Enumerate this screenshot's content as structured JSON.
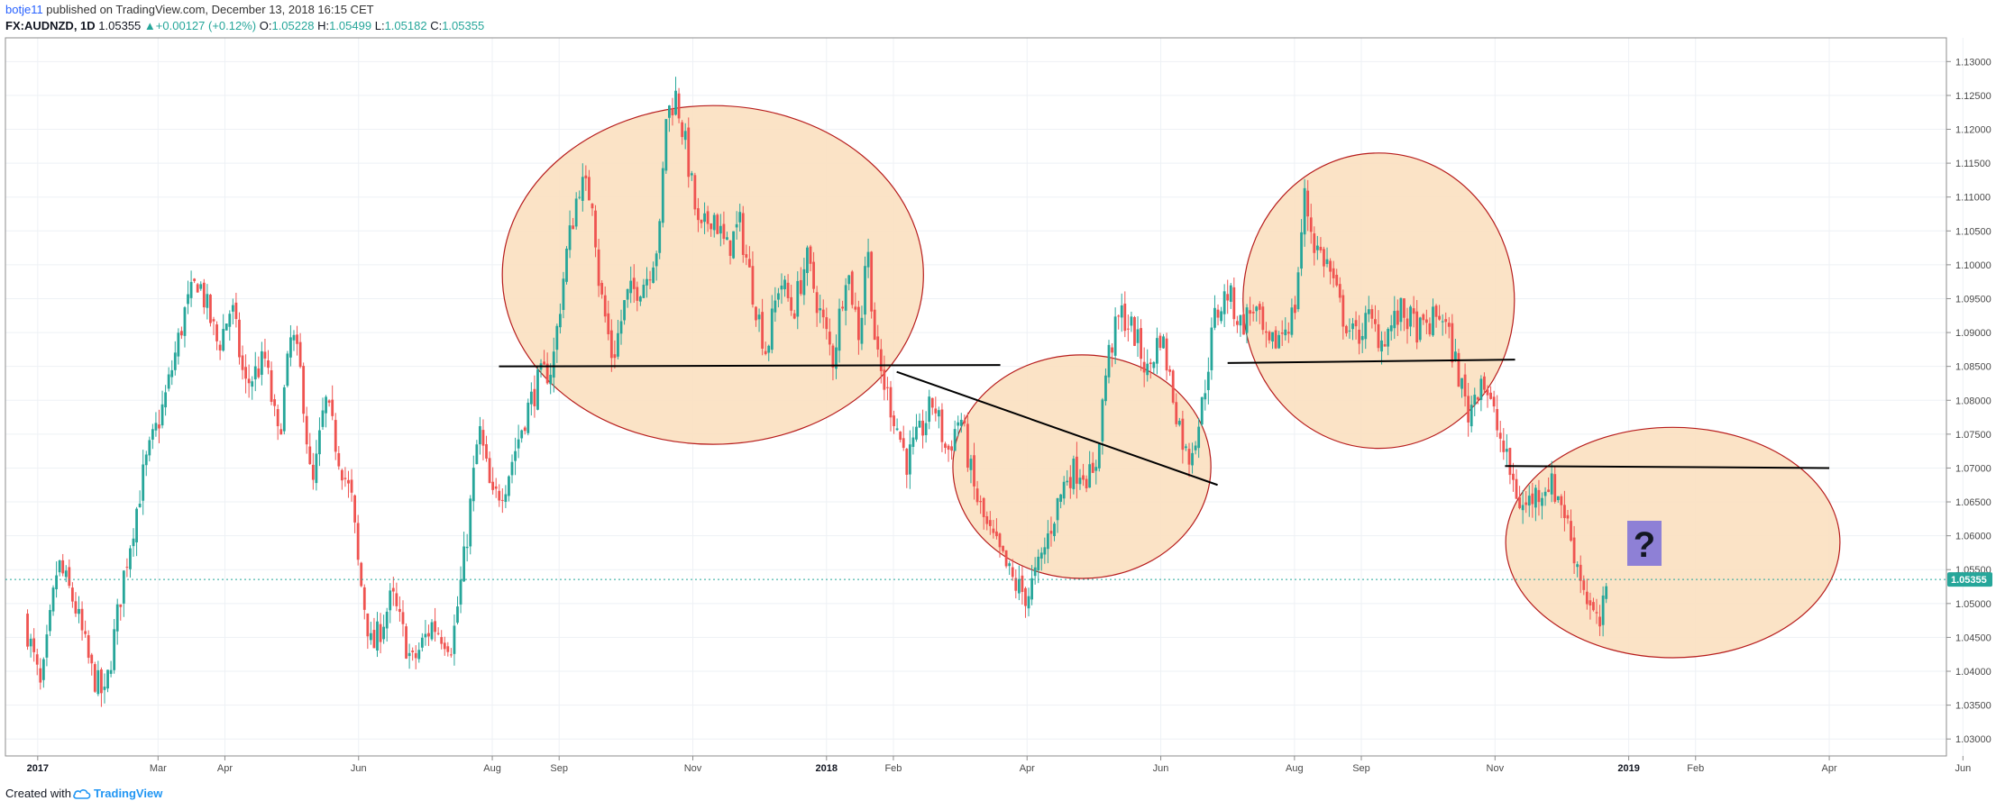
{
  "header": {
    "author": "botje11",
    "published_text": " published on TradingView.com, December 13, 2018 16:15 CET",
    "symbol": "FX:AUDNZD, 1D",
    "last": "1.05355",
    "change": "+0.00127 (+0.12%)",
    "o_label": "O:",
    "o_value": "1.05228",
    "h_label": "H:",
    "h_value": "1.05499",
    "l_label": "L:",
    "l_value": "1.05182",
    "c_label": "C:",
    "c_value": "1.05355"
  },
  "footer": {
    "created_with": "Created with",
    "brand": "TradingView"
  },
  "colors": {
    "up": "#26a69a",
    "down": "#ef5350",
    "ellipse_fill": "#fbe1c1",
    "ellipse_stroke": "#b71c1c",
    "price_tag": "#26a69a",
    "question_box": "#8e80d6"
  },
  "annotation": {
    "question": "?"
  },
  "chart_data": {
    "type": "candlestick",
    "symbol": "FX:AUDNZD",
    "interval": "1D",
    "ylim": [
      1.0275,
      1.1335
    ],
    "y_ticks": [
      "1.13000",
      "1.12500",
      "1.12000",
      "1.11500",
      "1.11000",
      "1.10500",
      "1.10000",
      "1.09500",
      "1.09000",
      "1.08500",
      "1.08000",
      "1.07500",
      "1.07000",
      "1.06500",
      "1.06000",
      "1.05500",
      "1.05000",
      "1.04500",
      "1.04000",
      "1.03500",
      "1.03000"
    ],
    "x_ticks": [
      {
        "label": "2017",
        "t": 0.2,
        "year": true
      },
      {
        "label": "Mar",
        "t": 2.0
      },
      {
        "label": "Apr",
        "t": 3.0
      },
      {
        "label": "Jun",
        "t": 5.0
      },
      {
        "label": "Aug",
        "t": 7.0
      },
      {
        "label": "Sep",
        "t": 8.0
      },
      {
        "label": "Nov",
        "t": 10.0
      },
      {
        "label": "2018",
        "t": 12.0,
        "year": true
      },
      {
        "label": "Feb",
        "t": 13.0
      },
      {
        "label": "Apr",
        "t": 15.0
      },
      {
        "label": "Jun",
        "t": 17.0
      },
      {
        "label": "Aug",
        "t": 19.0
      },
      {
        "label": "Sep",
        "t": 20.0
      },
      {
        "label": "Nov",
        "t": 22.0
      },
      {
        "label": "2019",
        "t": 24.0,
        "year": true
      },
      {
        "label": "Feb",
        "t": 25.0
      },
      {
        "label": "Apr",
        "t": 27.0
      },
      {
        "label": "Jun",
        "t": 29.0
      }
    ],
    "last_price": "1.05355",
    "price_path": [
      [
        0.0,
        1.048
      ],
      [
        0.25,
        1.037
      ],
      [
        0.5,
        1.056
      ],
      [
        0.75,
        1.05
      ],
      [
        1.0,
        1.04
      ],
      [
        1.2,
        1.036
      ],
      [
        1.5,
        1.055
      ],
      [
        1.8,
        1.07
      ],
      [
        2.1,
        1.08
      ],
      [
        2.4,
        1.093
      ],
      [
        2.6,
        1.098
      ],
      [
        2.9,
        1.088
      ],
      [
        3.1,
        1.094
      ],
      [
        3.3,
        1.082
      ],
      [
        3.6,
        1.086
      ],
      [
        3.8,
        1.074
      ],
      [
        4.0,
        1.09
      ],
      [
        4.15,
        1.083
      ],
      [
        4.3,
        1.066
      ],
      [
        4.5,
        1.08
      ],
      [
        4.7,
        1.072
      ],
      [
        4.9,
        1.065
      ],
      [
        5.0,
        1.055
      ],
      [
        5.2,
        1.043
      ],
      [
        5.5,
        1.051
      ],
      [
        5.8,
        1.041
      ],
      [
        6.1,
        1.047
      ],
      [
        6.4,
        1.044
      ],
      [
        6.6,
        1.058
      ],
      [
        6.8,
        1.076
      ],
      [
        7.0,
        1.065
      ],
      [
        7.2,
        1.068
      ],
      [
        7.5,
        1.078
      ],
      [
        7.7,
        1.083
      ],
      [
        7.9,
        1.085
      ],
      [
        8.1,
        1.101
      ],
      [
        8.3,
        1.112
      ],
      [
        8.5,
        1.11
      ],
      [
        8.6,
        1.097
      ],
      [
        8.8,
        1.086
      ],
      [
        9.0,
        1.095
      ],
      [
        9.3,
        1.098
      ],
      [
        9.5,
        1.104
      ],
      [
        9.6,
        1.122
      ],
      [
        9.75,
        1.125
      ],
      [
        9.9,
        1.117
      ],
      [
        10.1,
        1.104
      ],
      [
        10.3,
        1.108
      ],
      [
        10.5,
        1.102
      ],
      [
        10.7,
        1.106
      ],
      [
        10.9,
        1.096
      ],
      [
        11.1,
        1.087
      ],
      [
        11.3,
        1.098
      ],
      [
        11.5,
        1.093
      ],
      [
        11.7,
        1.101
      ],
      [
        11.9,
        1.093
      ],
      [
        12.1,
        1.086
      ],
      [
        12.3,
        1.1
      ],
      [
        12.5,
        1.089
      ],
      [
        12.6,
        1.104
      ],
      [
        12.75,
        1.086
      ],
      [
        13.0,
        1.078
      ],
      [
        13.2,
        1.071
      ],
      [
        13.4,
        1.075
      ],
      [
        13.6,
        1.08
      ],
      [
        13.8,
        1.072
      ],
      [
        14.0,
        1.078
      ],
      [
        14.2,
        1.067
      ],
      [
        14.4,
        1.061
      ],
      [
        14.6,
        1.057
      ],
      [
        14.8,
        1.053
      ],
      [
        15.0,
        1.051
      ],
      [
        15.2,
        1.056
      ],
      [
        15.4,
        1.063
      ],
      [
        15.6,
        1.069
      ],
      [
        15.8,
        1.07
      ],
      [
        16.0,
        1.068
      ],
      [
        16.2,
        1.086
      ],
      [
        16.4,
        1.093
      ],
      [
        16.6,
        1.09
      ],
      [
        16.8,
        1.084
      ],
      [
        17.0,
        1.09
      ],
      [
        17.2,
        1.08
      ],
      [
        17.4,
        1.071
      ],
      [
        17.6,
        1.078
      ],
      [
        17.8,
        1.092
      ],
      [
        18.0,
        1.096
      ],
      [
        18.2,
        1.091
      ],
      [
        18.4,
        1.094
      ],
      [
        18.6,
        1.087
      ],
      [
        18.8,
        1.09
      ],
      [
        19.0,
        1.093
      ],
      [
        19.15,
        1.11
      ],
      [
        19.3,
        1.103
      ],
      [
        19.5,
        1.1
      ],
      [
        19.7,
        1.093
      ],
      [
        19.9,
        1.089
      ],
      [
        20.1,
        1.092
      ],
      [
        20.3,
        1.089
      ],
      [
        20.6,
        1.093
      ],
      [
        20.9,
        1.09
      ],
      [
        21.2,
        1.093
      ],
      [
        21.4,
        1.086
      ],
      [
        21.6,
        1.078
      ],
      [
        21.8,
        1.084
      ],
      [
        22.0,
        1.077
      ],
      [
        22.2,
        1.07
      ],
      [
        22.4,
        1.064
      ],
      [
        22.6,
        1.066
      ],
      [
        22.8,
        1.068
      ],
      [
        23.0,
        1.065
      ],
      [
        23.2,
        1.057
      ],
      [
        23.4,
        1.05
      ],
      [
        23.55,
        1.046
      ],
      [
        23.7,
        1.0528
      ]
    ],
    "drawings": {
      "lines": [
        {
          "from": [
            7.1,
            1.085
          ],
          "to": [
            14.6,
            1.0852
          ]
        },
        {
          "from": [
            13.05,
            1.0842
          ],
          "to": [
            17.85,
            1.0675
          ]
        },
        {
          "from": [
            18.0,
            1.0855
          ],
          "to": [
            22.3,
            1.086
          ]
        },
        {
          "from": [
            22.15,
            1.0703
          ],
          "to": [
            27.0,
            1.07
          ]
        }
      ],
      "ellipses": [
        {
          "center": [
            10.3,
            1.0985
          ],
          "rx_months": 3.15,
          "ry_price": 0.025
        },
        {
          "center": [
            15.82,
            1.0702
          ],
          "rx_months": 1.93,
          "ry_price": 0.0165
        },
        {
          "center": [
            20.26,
            1.0947
          ],
          "rx_months": 2.03,
          "ry_price": 0.0218
        },
        {
          "center": [
            24.66,
            1.059
          ],
          "rx_months": 2.5,
          "ry_price": 0.017
        }
      ]
    }
  }
}
